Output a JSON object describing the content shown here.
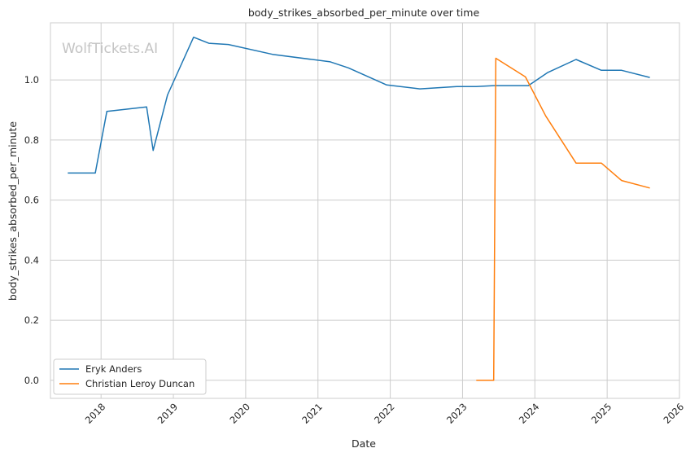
{
  "chart_data": {
    "type": "line",
    "title": "body_strikes_absorbed_per_minute over time",
    "xlabel": "Date",
    "ylabel": "body_strikes_absorbed_per_minute",
    "watermark": "WolfTickets.AI",
    "x_ticks": [
      "2018",
      "2019",
      "2020",
      "2021",
      "2022",
      "2023",
      "2024",
      "2025",
      "2026"
    ],
    "y_ticks": [
      "0.0",
      "0.2",
      "0.4",
      "0.6",
      "0.8",
      "1.0"
    ],
    "xlim": [
      2017.3,
      2026.0
    ],
    "ylim": [
      -0.06,
      1.19
    ],
    "grid": true,
    "legend_position": "lower-left",
    "series": [
      {
        "name": "Eryk Anders",
        "color": "#1f77b4",
        "points": [
          [
            2017.54,
            0.69
          ],
          [
            2017.92,
            0.69
          ],
          [
            2018.08,
            0.895
          ],
          [
            2018.63,
            0.91
          ],
          [
            2018.72,
            0.765
          ],
          [
            2018.92,
            0.95
          ],
          [
            2019.28,
            1.142
          ],
          [
            2019.49,
            1.122
          ],
          [
            2019.76,
            1.118
          ],
          [
            2020.37,
            1.085
          ],
          [
            2021.17,
            1.06
          ],
          [
            2021.42,
            1.04
          ],
          [
            2021.95,
            0.983
          ],
          [
            2022.41,
            0.97
          ],
          [
            2022.92,
            0.978
          ],
          [
            2023.19,
            0.978
          ],
          [
            2023.43,
            0.981
          ],
          [
            2023.91,
            0.981
          ],
          [
            2024.18,
            1.025
          ],
          [
            2024.57,
            1.068
          ],
          [
            2024.92,
            1.032
          ],
          [
            2025.2,
            1.032
          ],
          [
            2025.59,
            1.008
          ]
        ]
      },
      {
        "name": "Christian Leroy Duncan",
        "color": "#ff7f0e",
        "points": [
          [
            2023.19,
            0.0
          ],
          [
            2023.43,
            0.0
          ],
          [
            2023.46,
            1.072
          ],
          [
            2023.87,
            1.01
          ],
          [
            2024.15,
            0.88
          ],
          [
            2024.57,
            0.723
          ],
          [
            2024.92,
            0.723
          ],
          [
            2025.2,
            0.665
          ],
          [
            2025.59,
            0.64
          ]
        ]
      }
    ]
  }
}
